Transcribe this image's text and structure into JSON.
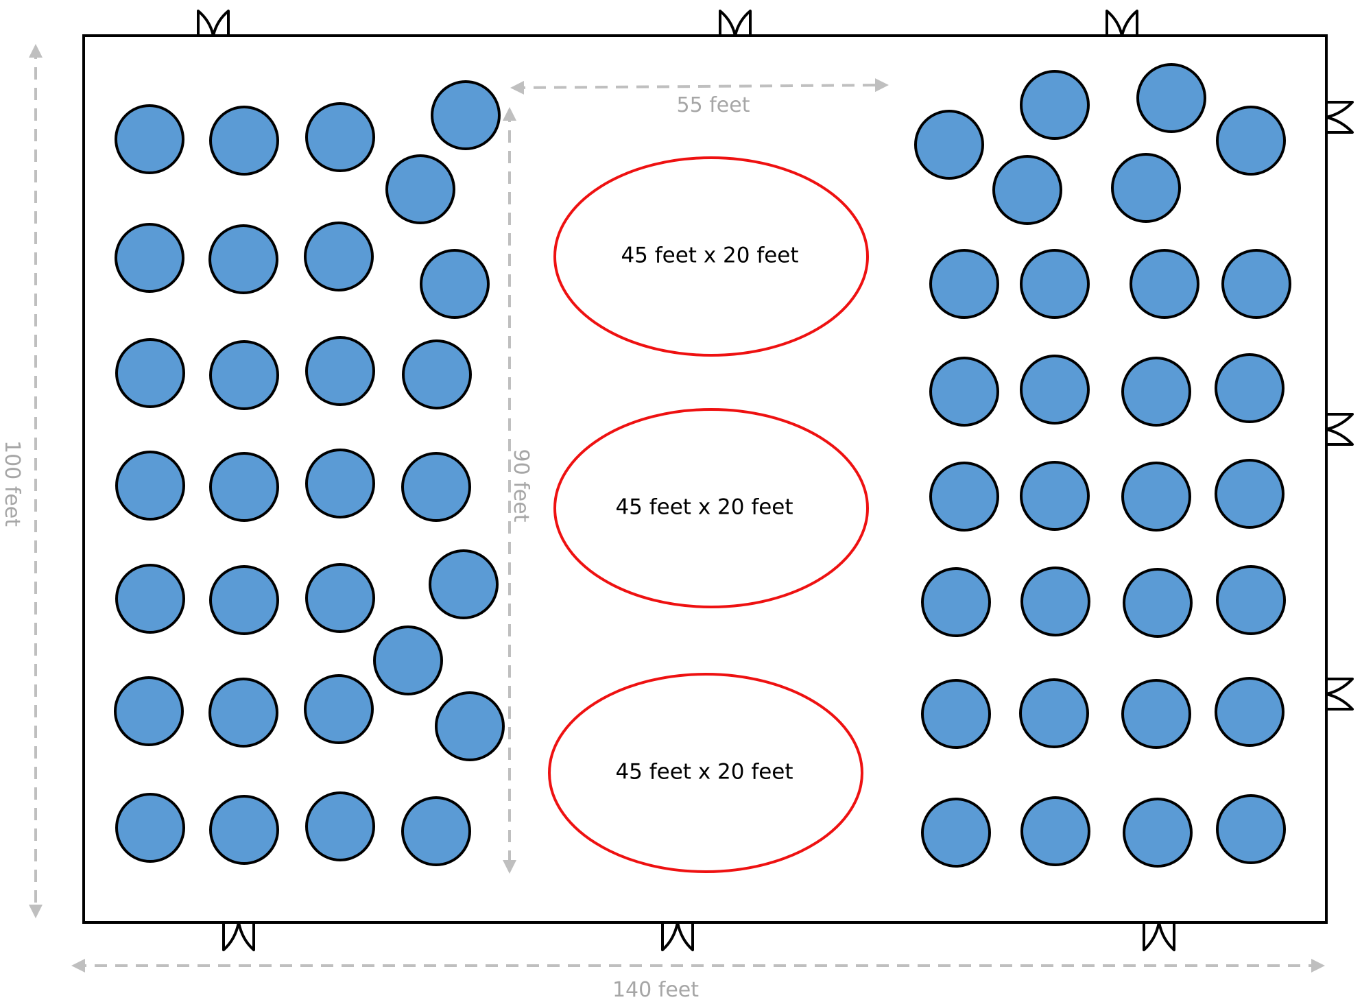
{
  "dimensions": {
    "room_width": "140 feet",
    "room_height": "100 feet",
    "aisle_width": "55 feet",
    "aisle_height": "90 feet"
  },
  "areas": [
    {
      "label": "45 feet x 20 feet"
    },
    {
      "label": "45 feet x 20 feet"
    },
    {
      "label": "45 feet x 20 feet"
    }
  ],
  "tables": {
    "left_count": 30,
    "right_count": 30
  },
  "doors": {
    "top": 3,
    "bottom": 3,
    "right": 3
  },
  "colors": {
    "table_fill": "#5b9bd5",
    "table_stroke": "#000000",
    "area_stroke": "#ee1111",
    "dimension_line": "#bfbfbf",
    "dimension_text": "#a6a6a6",
    "wall": "#000000"
  }
}
